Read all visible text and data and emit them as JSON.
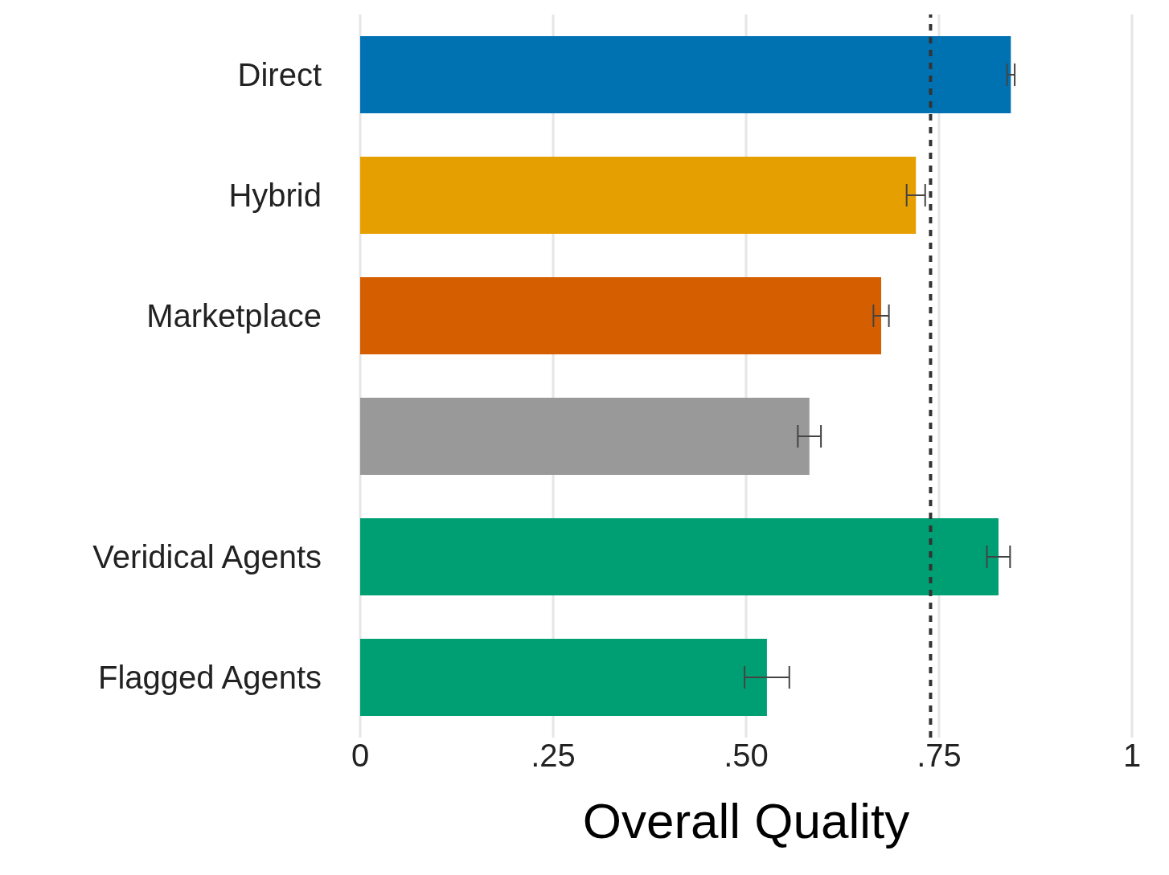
{
  "chart_data": {
    "type": "bar",
    "orientation": "horizontal",
    "xlabel": "Overall Quality",
    "categories": [
      "Direct",
      "Hybrid",
      "Marketplace",
      null,
      "Veridical Agents",
      "Flagged Agents"
    ],
    "values": [
      0.843,
      0.72,
      0.675,
      0.582,
      0.827,
      0.527
    ],
    "errors": [
      0.005,
      0.012,
      0.01,
      0.015,
      0.015,
      0.029
    ],
    "colors": [
      "#0072b2",
      "#e69f00",
      "#d55e00",
      "#999999",
      "#009e73",
      "#009e73"
    ],
    "xlim": [
      0,
      1
    ],
    "xticks": [
      0,
      {
        "value": 0.25,
        "label": ".25"
      },
      {
        "value": 0.5,
        "label": ".50"
      },
      {
        "value": 0.75,
        "label": ".75"
      },
      1
    ],
    "ref_lines": [
      {
        "axis": "x",
        "value": 0.739,
        "line_style": "dashed",
        "color": "#333333"
      }
    ],
    "grid": "x"
  }
}
